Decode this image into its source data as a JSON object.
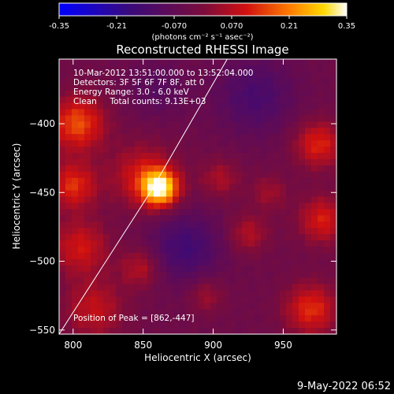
{
  "colorbar": {
    "ticks": [
      "-0.35",
      "-0.21",
      "-0.070",
      "0.070",
      "0.21",
      "0.35"
    ],
    "unit_label": "(photons cm⁻² s⁻¹ asec⁻²)",
    "range": [
      -0.35,
      0.35
    ]
  },
  "chart_data": {
    "type": "heatmap",
    "title": "Reconstructed RHESSI Image",
    "xlabel": "Heliocentric X (arcsec)",
    "ylabel": "Heliocentric Y (arcsec)",
    "xlim": [
      790,
      988
    ],
    "ylim": [
      -553,
      -353
    ],
    "x_ticks": [
      800,
      850,
      900,
      950
    ],
    "y_ticks": [
      -400,
      -450,
      -500,
      -550
    ],
    "x_tick_labels": [
      "800",
      "850",
      "900",
      "950"
    ],
    "y_tick_labels": [
      "−400",
      "−450",
      "−500",
      "−550"
    ],
    "annotations": {
      "time": "10-Mar-2012 13:51:00.000 to 13:52:04.000",
      "detectors": "Detectors: 3F 5F 6F 7F 8F, att 0",
      "energy": "Energy Range: 3.0 - 6.0 keV",
      "clean": "Clean     Total counts: 9.13E+03",
      "peak": "Position of Peak = [862,-447]"
    },
    "peak": [
      862,
      -447
    ],
    "limb_line": [
      [
        790,
        -553
      ],
      [
        855,
        -450
      ],
      [
        910,
        -353
      ]
    ],
    "sources": [
      {
        "x": 862,
        "y": -447,
        "amp": 0.35,
        "sigma": 9
      },
      {
        "x": 850,
        "y": -438,
        "amp": 0.14,
        "sigma": 16
      },
      {
        "x": 803,
        "y": -400,
        "amp": 0.2,
        "sigma": 14
      },
      {
        "x": 800,
        "y": -445,
        "amp": 0.17,
        "sigma": 12
      },
      {
        "x": 805,
        "y": -490,
        "amp": 0.14,
        "sigma": 14
      },
      {
        "x": 815,
        "y": -535,
        "amp": 0.12,
        "sigma": 15
      },
      {
        "x": 848,
        "y": -505,
        "amp": 0.11,
        "sigma": 10
      },
      {
        "x": 905,
        "y": -440,
        "amp": 0.09,
        "sigma": 10
      },
      {
        "x": 925,
        "y": -480,
        "amp": 0.1,
        "sigma": 10
      },
      {
        "x": 940,
        "y": -450,
        "amp": 0.08,
        "sigma": 9
      },
      {
        "x": 975,
        "y": -415,
        "amp": 0.16,
        "sigma": 12
      },
      {
        "x": 978,
        "y": -470,
        "amp": 0.15,
        "sigma": 12
      },
      {
        "x": 970,
        "y": -535,
        "amp": 0.17,
        "sigma": 13
      },
      {
        "x": 895,
        "y": -525,
        "amp": 0.08,
        "sigma": 9
      },
      {
        "x": 930,
        "y": -380,
        "amp": -0.1,
        "sigma": 20
      },
      {
        "x": 880,
        "y": -490,
        "amp": -0.12,
        "sigma": 18
      },
      {
        "x": 860,
        "y": -375,
        "amp": -0.06,
        "sigma": 15
      }
    ]
  },
  "footer": {
    "timestamp": "9-May-2022 06:52"
  }
}
